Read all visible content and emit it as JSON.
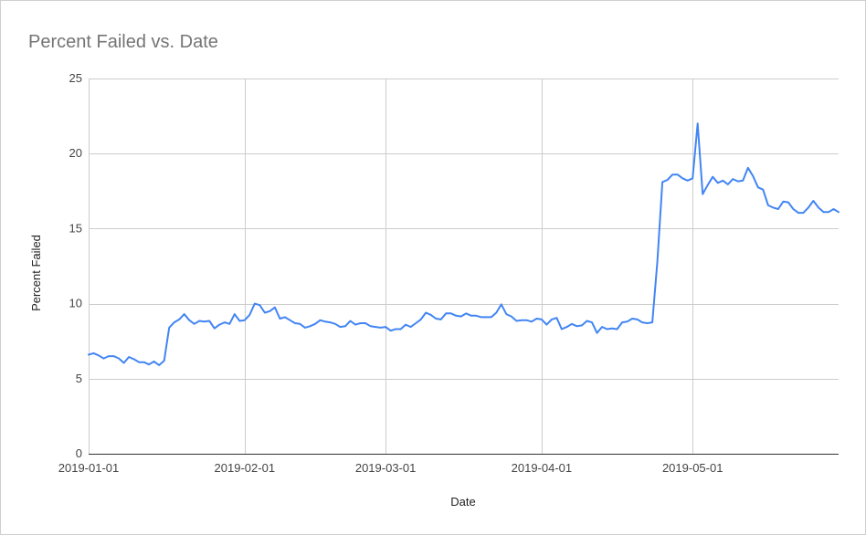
{
  "chart_data": {
    "type": "line",
    "title": "Percent Failed vs. Date",
    "xlabel": "Date",
    "ylabel": "Percent Failed",
    "xlim": [
      "2019-01-01",
      "2019-05-30"
    ],
    "ylim": [
      0,
      25
    ],
    "y_ticks": [
      0,
      5,
      10,
      15,
      20,
      25
    ],
    "x_ticks": [
      "2019-01-01",
      "2019-02-01",
      "2019-03-01",
      "2019-04-01",
      "2019-05-01"
    ],
    "grid": true,
    "legend": "none",
    "series": [
      {
        "color": "#4285f4",
        "points": [
          [
            "2019-01-01",
            6.6
          ],
          [
            "2019-01-02",
            6.7
          ],
          [
            "2019-01-03",
            6.55
          ],
          [
            "2019-01-04",
            6.35
          ],
          [
            "2019-01-05",
            6.5
          ],
          [
            "2019-01-06",
            6.5
          ],
          [
            "2019-01-07",
            6.35
          ],
          [
            "2019-01-08",
            6.05
          ],
          [
            "2019-01-09",
            6.45
          ],
          [
            "2019-01-10",
            6.3
          ],
          [
            "2019-01-11",
            6.1
          ],
          [
            "2019-01-12",
            6.1
          ],
          [
            "2019-01-13",
            5.95
          ],
          [
            "2019-01-14",
            6.15
          ],
          [
            "2019-01-15",
            5.9
          ],
          [
            "2019-01-16",
            6.2
          ],
          [
            "2019-01-17",
            8.4
          ],
          [
            "2019-01-18",
            8.75
          ],
          [
            "2019-01-19",
            8.95
          ],
          [
            "2019-01-20",
            9.3
          ],
          [
            "2019-01-21",
            8.9
          ],
          [
            "2019-01-22",
            8.65
          ],
          [
            "2019-01-23",
            8.85
          ],
          [
            "2019-01-24",
            8.8
          ],
          [
            "2019-01-25",
            8.85
          ],
          [
            "2019-01-26",
            8.35
          ],
          [
            "2019-01-27",
            8.6
          ],
          [
            "2019-01-28",
            8.75
          ],
          [
            "2019-01-29",
            8.65
          ],
          [
            "2019-01-30",
            9.3
          ],
          [
            "2019-01-31",
            8.85
          ],
          [
            "2019-02-01",
            8.9
          ],
          [
            "2019-02-02",
            9.25
          ],
          [
            "2019-02-03",
            10.0
          ],
          [
            "2019-02-04",
            9.9
          ],
          [
            "2019-02-05",
            9.4
          ],
          [
            "2019-02-06",
            9.5
          ],
          [
            "2019-02-07",
            9.75
          ],
          [
            "2019-02-08",
            9.0
          ],
          [
            "2019-02-09",
            9.1
          ],
          [
            "2019-02-10",
            8.9
          ],
          [
            "2019-02-11",
            8.7
          ],
          [
            "2019-02-12",
            8.65
          ],
          [
            "2019-02-13",
            8.4
          ],
          [
            "2019-02-14",
            8.5
          ],
          [
            "2019-02-15",
            8.65
          ],
          [
            "2019-02-16",
            8.9
          ],
          [
            "2019-02-17",
            8.8
          ],
          [
            "2019-02-18",
            8.75
          ],
          [
            "2019-02-19",
            8.65
          ],
          [
            "2019-02-20",
            8.45
          ],
          [
            "2019-02-21",
            8.5
          ],
          [
            "2019-02-22",
            8.85
          ],
          [
            "2019-02-23",
            8.6
          ],
          [
            "2019-02-24",
            8.7
          ],
          [
            "2019-02-25",
            8.7
          ],
          [
            "2019-02-26",
            8.5
          ],
          [
            "2019-02-27",
            8.45
          ],
          [
            "2019-02-28",
            8.4
          ],
          [
            "2019-03-01",
            8.45
          ],
          [
            "2019-03-02",
            8.2
          ],
          [
            "2019-03-03",
            8.3
          ],
          [
            "2019-03-04",
            8.3
          ],
          [
            "2019-03-05",
            8.6
          ],
          [
            "2019-03-06",
            8.45
          ],
          [
            "2019-03-07",
            8.7
          ],
          [
            "2019-03-08",
            8.95
          ],
          [
            "2019-03-09",
            9.4
          ],
          [
            "2019-03-10",
            9.25
          ],
          [
            "2019-03-11",
            9.0
          ],
          [
            "2019-03-12",
            8.95
          ],
          [
            "2019-03-13",
            9.35
          ],
          [
            "2019-03-14",
            9.35
          ],
          [
            "2019-03-15",
            9.2
          ],
          [
            "2019-03-16",
            9.15
          ],
          [
            "2019-03-17",
            9.35
          ],
          [
            "2019-03-18",
            9.2
          ],
          [
            "2019-03-19",
            9.2
          ],
          [
            "2019-03-20",
            9.1
          ],
          [
            "2019-03-21",
            9.1
          ],
          [
            "2019-03-22",
            9.1
          ],
          [
            "2019-03-23",
            9.4
          ],
          [
            "2019-03-24",
            9.95
          ],
          [
            "2019-03-25",
            9.3
          ],
          [
            "2019-03-26",
            9.15
          ],
          [
            "2019-03-27",
            8.85
          ],
          [
            "2019-03-28",
            8.9
          ],
          [
            "2019-03-29",
            8.9
          ],
          [
            "2019-03-30",
            8.8
          ],
          [
            "2019-03-31",
            9.0
          ],
          [
            "2019-04-01",
            8.95
          ],
          [
            "2019-04-02",
            8.6
          ],
          [
            "2019-04-03",
            8.95
          ],
          [
            "2019-04-04",
            9.05
          ],
          [
            "2019-04-05",
            8.3
          ],
          [
            "2019-04-06",
            8.45
          ],
          [
            "2019-04-07",
            8.65
          ],
          [
            "2019-04-08",
            8.5
          ],
          [
            "2019-04-09",
            8.55
          ],
          [
            "2019-04-10",
            8.85
          ],
          [
            "2019-04-11",
            8.75
          ],
          [
            "2019-04-12",
            8.05
          ],
          [
            "2019-04-13",
            8.45
          ],
          [
            "2019-04-14",
            8.3
          ],
          [
            "2019-04-15",
            8.35
          ],
          [
            "2019-04-16",
            8.3
          ],
          [
            "2019-04-17",
            8.75
          ],
          [
            "2019-04-18",
            8.8
          ],
          [
            "2019-04-19",
            9.0
          ],
          [
            "2019-04-20",
            8.95
          ],
          [
            "2019-04-21",
            8.75
          ],
          [
            "2019-04-22",
            8.7
          ],
          [
            "2019-04-23",
            8.75
          ],
          [
            "2019-04-24",
            12.8
          ],
          [
            "2019-04-25",
            18.1
          ],
          [
            "2019-04-26",
            18.25
          ],
          [
            "2019-04-27",
            18.6
          ],
          [
            "2019-04-28",
            18.6
          ],
          [
            "2019-04-29",
            18.35
          ],
          [
            "2019-04-30",
            18.2
          ],
          [
            "2019-05-01",
            18.35
          ],
          [
            "2019-05-02",
            22.0
          ],
          [
            "2019-05-03",
            17.3
          ],
          [
            "2019-05-04",
            17.9
          ],
          [
            "2019-05-05",
            18.45
          ],
          [
            "2019-05-06",
            18.05
          ],
          [
            "2019-05-07",
            18.2
          ],
          [
            "2019-05-08",
            17.95
          ],
          [
            "2019-05-09",
            18.3
          ],
          [
            "2019-05-10",
            18.15
          ],
          [
            "2019-05-11",
            18.2
          ],
          [
            "2019-05-12",
            19.05
          ],
          [
            "2019-05-13",
            18.5
          ],
          [
            "2019-05-14",
            17.75
          ],
          [
            "2019-05-15",
            17.6
          ],
          [
            "2019-05-16",
            16.55
          ],
          [
            "2019-05-17",
            16.4
          ],
          [
            "2019-05-18",
            16.3
          ],
          [
            "2019-05-19",
            16.8
          ],
          [
            "2019-05-20",
            16.75
          ],
          [
            "2019-05-21",
            16.3
          ],
          [
            "2019-05-22",
            16.05
          ],
          [
            "2019-05-23",
            16.05
          ],
          [
            "2019-05-24",
            16.4
          ],
          [
            "2019-05-25",
            16.85
          ],
          [
            "2019-05-26",
            16.4
          ],
          [
            "2019-05-27",
            16.1
          ],
          [
            "2019-05-28",
            16.1
          ],
          [
            "2019-05-29",
            16.3
          ],
          [
            "2019-05-30",
            16.1
          ]
        ]
      }
    ]
  }
}
